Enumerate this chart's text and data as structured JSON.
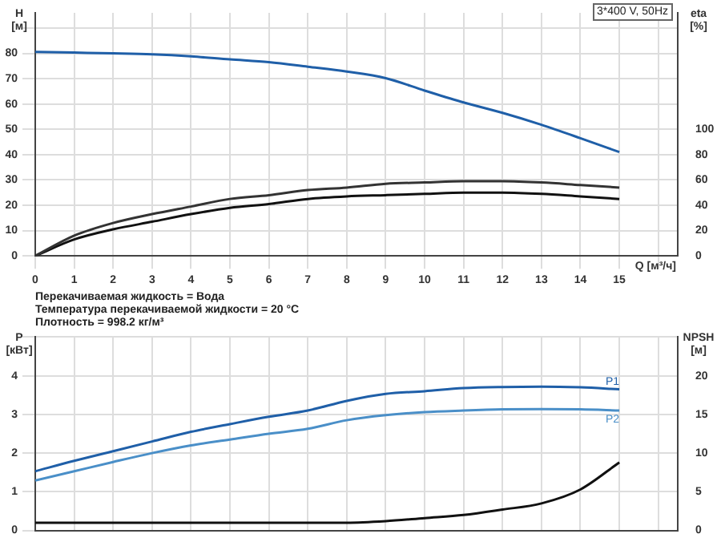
{
  "chart_data": [
    {
      "type": "line",
      "xlabel": "Q [м³/ч]",
      "ylabel": "H\n[м]",
      "y2label": "eta\n[%]",
      "annotations": [
        "3*400 V, 50Hz",
        "Перекачиваемая жидкость = Вода",
        "Температура перекачиваемой жидкости = 20 °C",
        "Плотность = 998.2 кг/м³"
      ],
      "x": [
        0,
        1,
        2,
        3,
        4,
        5,
        6,
        7,
        8,
        9,
        10,
        11,
        12,
        13,
        14,
        15
      ],
      "series": [
        {
          "color": "#1f5fa8",
          "values": [
            80.6,
            80.3,
            80,
            79.6,
            78.8,
            77.6,
            76.5,
            74.7,
            72.8,
            70.2,
            65.3,
            60.6,
            56.5,
            51.8,
            46.5,
            41
          ]
        },
        {
          "color": "#333333",
          "axis": "y2",
          "values": [
            0,
            16,
            26,
            33,
            39,
            45,
            48,
            52,
            54,
            57,
            58,
            59,
            59,
            58,
            56,
            54
          ]
        },
        {
          "color": "#111111",
          "axis": "y2",
          "values": [
            0,
            13,
            21,
            27,
            33,
            38,
            41,
            45,
            47,
            48,
            49,
            50,
            50,
            49,
            47,
            45
          ]
        }
      ],
      "xlim": [
        0,
        16.5
      ],
      "xticks": [
        0,
        1,
        2,
        3,
        4,
        5,
        6,
        7,
        8,
        9,
        10,
        11,
        12,
        13,
        14,
        15,
        {
          "value": 16,
          "label": null
        }
      ],
      "ylim": [
        0,
        96
      ],
      "yticks": [
        0,
        10,
        20,
        30,
        40,
        50,
        60,
        70,
        80,
        {
          "value": 90,
          "label": null
        }
      ],
      "y2lim": [
        0,
        192
      ],
      "y2ticks": [
        0,
        20,
        40,
        60,
        80,
        100
      ],
      "grid": true,
      "legend": false
    },
    {
      "type": "line",
      "ylabel": "P\n[кВт]",
      "y2label": "NPSH\n[м]",
      "x": [
        0,
        1,
        2,
        3,
        4,
        5,
        6,
        7,
        8,
        9,
        10,
        11,
        12,
        13,
        14,
        15
      ],
      "series": [
        {
          "name": "P1",
          "color": "#1f5fa8",
          "values": [
            1.53,
            1.8,
            2.05,
            2.3,
            2.55,
            2.75,
            2.94,
            3.1,
            3.35,
            3.53,
            3.6,
            3.68,
            3.71,
            3.72,
            3.7,
            3.65
          ]
        },
        {
          "name": "P2",
          "color": "#4a8fc8",
          "values": [
            1.29,
            1.53,
            1.77,
            2.0,
            2.2,
            2.35,
            2.5,
            2.63,
            2.85,
            2.98,
            3.06,
            3.1,
            3.13,
            3.14,
            3.13,
            3.1
          ]
        },
        {
          "color": "#111111",
          "axis": "y2",
          "values": [
            1,
            1,
            1,
            1,
            1,
            1,
            1,
            1,
            1,
            1.2,
            1.6,
            2.0,
            2.7,
            3.5,
            5.3,
            8.8
          ]
        }
      ],
      "xlim": [
        0,
        16.5
      ],
      "xticks": [
        0,
        1,
        2,
        3,
        4,
        5,
        6,
        7,
        8,
        9,
        10,
        11,
        12,
        13,
        14,
        15,
        16
      ],
      "ylim": [
        0,
        5
      ],
      "yticks": [
        0,
        1,
        2,
        3,
        4,
        {
          "value": 5,
          "label": null
        }
      ],
      "y2lim": [
        0,
        25
      ],
      "y2ticks": [
        0,
        5,
        10,
        15,
        20
      ],
      "tick_labels": "y",
      "grid": true,
      "legend": false
    }
  ]
}
